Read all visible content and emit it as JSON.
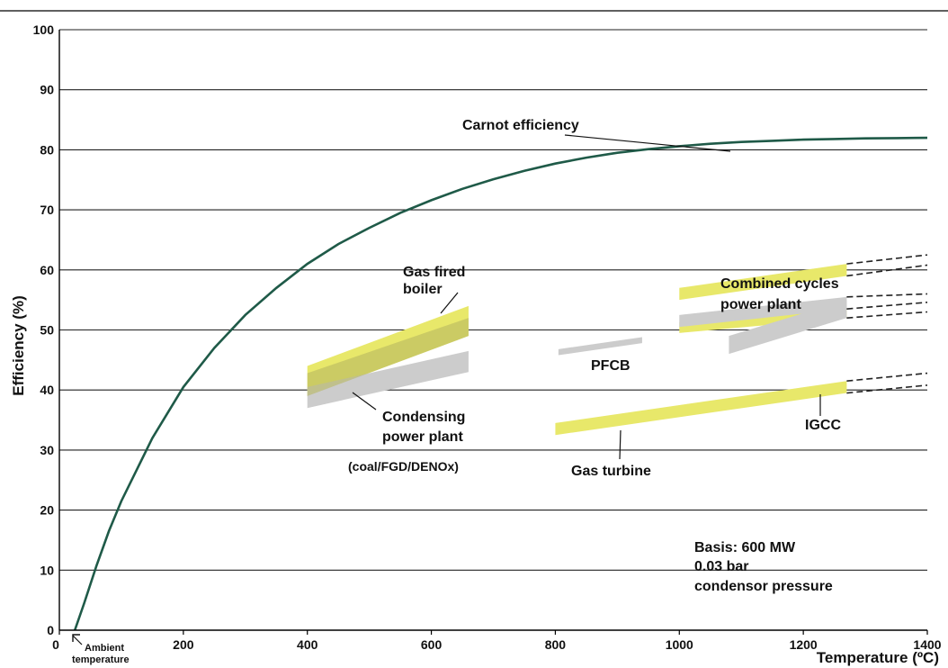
{
  "chart_data": {
    "type": "line",
    "title": "",
    "xlabel": "Temperature (ºC)",
    "ylabel": "Efficiency (%)",
    "xlim": [
      0,
      1400
    ],
    "ylim": [
      0,
      100
    ],
    "x_ticks": [
      {
        "value": 0,
        "label": "0"
      },
      {
        "value": 200,
        "label": "200"
      },
      {
        "value": 400,
        "label": "400"
      },
      {
        "value": 600,
        "label": "600"
      },
      {
        "value": 800,
        "label": "800"
      },
      {
        "value": 1000,
        "label": "1000"
      },
      {
        "value": 1200,
        "label": "1200"
      },
      {
        "value": 1400,
        "label": "1400"
      }
    ],
    "y_ticks": [
      {
        "value": 0,
        "label": "0"
      },
      {
        "value": 10,
        "label": "10"
      },
      {
        "value": 20,
        "label": "20"
      },
      {
        "value": 30,
        "label": "30"
      },
      {
        "value": 40,
        "label": "40"
      },
      {
        "value": 50,
        "label": "50"
      },
      {
        "value": 60,
        "label": "60"
      },
      {
        "value": 70,
        "label": "70"
      },
      {
        "value": 80,
        "label": "80"
      },
      {
        "value": 90,
        "label": "90"
      },
      {
        "value": 100,
        "label": "100"
      }
    ],
    "grid": {
      "horizontal": true,
      "vertical": false
    },
    "carnot": {
      "label": "Carnot efficiency",
      "color": "#1f5a48",
      "x": [
        25,
        40,
        60,
        80,
        100,
        150,
        200,
        250,
        300,
        350,
        400,
        450,
        500,
        550,
        600,
        650,
        700,
        750,
        800,
        850,
        900,
        950,
        1000,
        1050,
        1100,
        1150,
        1200,
        1250,
        1300,
        1350,
        1400
      ],
      "y": [
        0,
        4.5,
        10.8,
        16.5,
        21.5,
        32,
        40.5,
        47,
        52.5,
        57,
        61,
        64.3,
        67,
        69.5,
        71.6,
        73.5,
        75.1,
        76.5,
        77.7,
        78.7,
        79.5,
        80.1,
        80.6,
        81,
        81.3,
        81.5,
        81.7,
        81.8,
        81.9,
        81.95,
        82
      ]
    },
    "bands": [
      {
        "name": "Gas fired boiler",
        "color": "#e8e86a",
        "x": [
          400,
          660
        ],
        "upper": [
          44,
          54
        ],
        "lower": [
          39,
          49
        ]
      },
      {
        "name": "Condensing power plant",
        "color": "#cccccc",
        "x": [
          400,
          660
        ],
        "upper": [
          40.5,
          46.5
        ],
        "lower": [
          37,
          43
        ]
      },
      {
        "name": "PFCB",
        "color": "#cccccc",
        "x": [
          805,
          940
        ],
        "upper": [
          46.8,
          48.8
        ],
        "lower": [
          45.8,
          47.8
        ]
      },
      {
        "name": "Gas turbine",
        "color": "#e8e86a",
        "x": [
          800,
          1270
        ],
        "upper": [
          34.5,
          41.5
        ],
        "lower": [
          32.5,
          39.5
        ]
      },
      {
        "name": "Combined cycles power plant (upper)",
        "color": "#e8e86a",
        "x": [
          1000,
          1270
        ],
        "upper": [
          57,
          61
        ],
        "lower": [
          55,
          59
        ]
      },
      {
        "name": "Combined cycles power plant (lower)",
        "color": "#e8e86a",
        "x": [
          1000,
          1270
        ],
        "upper": [
          51.3,
          53.8
        ],
        "lower": [
          49.5,
          52
        ]
      },
      {
        "name": "Combined cycles power plant (grey)",
        "color": "#cccccc",
        "x": [
          1000,
          1270
        ],
        "upper": [
          52.5,
          55.5
        ],
        "lower": [
          50.5,
          53.5
        ]
      },
      {
        "name": "IGCC",
        "color": "#cccccc",
        "x": [
          1080,
          1270
        ],
        "upper": [
          49,
          55
        ],
        "lower": [
          46,
          52
        ]
      }
    ],
    "dashed_extensions": [
      {
        "x": [
          1270,
          1400
        ],
        "y": [
          61,
          62.5
        ]
      },
      {
        "x": [
          1270,
          1400
        ],
        "y": [
          59,
          60.8
        ]
      },
      {
        "x": [
          1270,
          1400
        ],
        "y": [
          55.5,
          56
        ]
      },
      {
        "x": [
          1270,
          1400
        ],
        "y": [
          53.5,
          54.6
        ]
      },
      {
        "x": [
          1270,
          1400
        ],
        "y": [
          52,
          53
        ]
      },
      {
        "x": [
          1270,
          1400
        ],
        "y": [
          41.5,
          42.8
        ]
      },
      {
        "x": [
          1270,
          1400
        ],
        "y": [
          39.5,
          40.8
        ]
      }
    ],
    "annotations": {
      "gas_fired_boiler": [
        "Gas fired",
        "boiler"
      ],
      "combined_cycles": [
        "Combined cycles",
        "power plant"
      ],
      "pfcb": "PFCB",
      "condensing": [
        "Condensing",
        "power plant"
      ],
      "coal": "(coal/FGD/DENOx)",
      "gas_turbine": "Gas turbine",
      "igcc": "IGCC",
      "basis": [
        "Basis: 600 MW",
        "0.03 bar",
        "condensor pressure"
      ],
      "ambient": [
        "Ambient",
        "temperature"
      ]
    }
  }
}
